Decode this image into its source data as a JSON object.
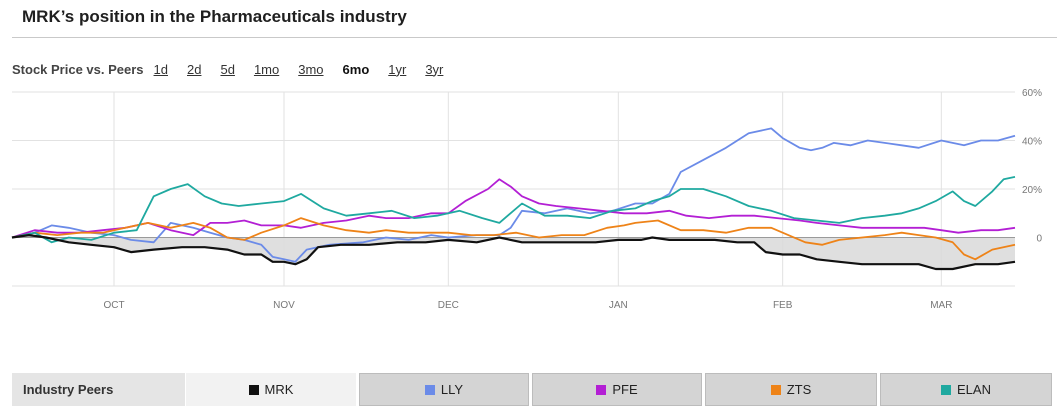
{
  "header": {
    "title": "MRK’s position in the Pharmaceuticals industry"
  },
  "range": {
    "label": "Stock Price vs. Peers",
    "options": [
      {
        "label": "1d",
        "active": false
      },
      {
        "label": "2d",
        "active": false
      },
      {
        "label": "5d",
        "active": false
      },
      {
        "label": "1mo",
        "active": false
      },
      {
        "label": "3mo",
        "active": false
      },
      {
        "label": "6mo",
        "active": true
      },
      {
        "label": "1yr",
        "active": false
      },
      {
        "label": "3yr",
        "active": false
      }
    ]
  },
  "peers": {
    "label": "Industry Peers",
    "items": [
      {
        "label": "MRK",
        "color": "#111111"
      },
      {
        "label": "LLY",
        "color": "#6b8be8"
      },
      {
        "label": "PFE",
        "color": "#b31fd4"
      },
      {
        "label": "ZTS",
        "color": "#ee8318"
      },
      {
        "label": "ELAN",
        "color": "#1fa9a0"
      }
    ]
  },
  "chart_data": {
    "type": "line",
    "title": "",
    "xlabel": "",
    "ylabel": "",
    "ylim": [
      -20,
      60
    ],
    "yticks": [
      "60%",
      "40%",
      "20%",
      "0"
    ],
    "ytick_values": [
      60,
      40,
      20,
      0
    ],
    "xticks": [
      "OCT",
      "NOV",
      "DEC",
      "JAN",
      "FEB",
      "MAR"
    ],
    "xtick_values": [
      18,
      48,
      77,
      107,
      136,
      164
    ],
    "xlim": [
      0,
      177
    ],
    "grid": true,
    "legend": "bottom",
    "series": [
      {
        "name": "MRK",
        "color": "#111111",
        "fill": true,
        "points": [
          [
            0,
            0
          ],
          [
            3,
            1
          ],
          [
            6,
            0
          ],
          [
            10,
            -2
          ],
          [
            14,
            -3
          ],
          [
            18,
            -4
          ],
          [
            21,
            -6
          ],
          [
            25,
            -5
          ],
          [
            30,
            -4
          ],
          [
            34,
            -4
          ],
          [
            38,
            -5
          ],
          [
            41,
            -7
          ],
          [
            44,
            -7
          ],
          [
            46,
            -10
          ],
          [
            48,
            -10
          ],
          [
            50,
            -11
          ],
          [
            52,
            -9
          ],
          [
            54,
            -4
          ],
          [
            58,
            -3
          ],
          [
            63,
            -3
          ],
          [
            68,
            -2
          ],
          [
            73,
            -2
          ],
          [
            77,
            -1
          ],
          [
            82,
            -2
          ],
          [
            86,
            0
          ],
          [
            90,
            -2
          ],
          [
            94,
            -2
          ],
          [
            98,
            -2
          ],
          [
            103,
            -2
          ],
          [
            107,
            -1
          ],
          [
            111,
            -1
          ],
          [
            113,
            0
          ],
          [
            116,
            -1
          ],
          [
            120,
            -1
          ],
          [
            124,
            -1
          ],
          [
            128,
            -2
          ],
          [
            131,
            -2
          ],
          [
            133,
            -6
          ],
          [
            136,
            -7
          ],
          [
            139,
            -7
          ],
          [
            142,
            -9
          ],
          [
            146,
            -10
          ],
          [
            150,
            -11
          ],
          [
            154,
            -11
          ],
          [
            157,
            -11
          ],
          [
            160,
            -11
          ],
          [
            163,
            -13
          ],
          [
            166,
            -13
          ],
          [
            170,
            -11
          ],
          [
            174,
            -11
          ],
          [
            177,
            -10
          ]
        ]
      },
      {
        "name": "LLY",
        "color": "#6b8be8",
        "fill": false,
        "points": [
          [
            0,
            0
          ],
          [
            4,
            2
          ],
          [
            7,
            5
          ],
          [
            10,
            4
          ],
          [
            14,
            2
          ],
          [
            18,
            1
          ],
          [
            21,
            -1
          ],
          [
            25,
            -2
          ],
          [
            28,
            6
          ],
          [
            32,
            4
          ],
          [
            35,
            2
          ],
          [
            38,
            0
          ],
          [
            41,
            -1
          ],
          [
            44,
            -3
          ],
          [
            46,
            -8
          ],
          [
            48,
            -9
          ],
          [
            50,
            -10
          ],
          [
            52,
            -5
          ],
          [
            56,
            -3
          ],
          [
            62,
            -2
          ],
          [
            66,
            0
          ],
          [
            70,
            -1
          ],
          [
            74,
            1
          ],
          [
            77,
            0
          ],
          [
            82,
            1
          ],
          [
            86,
            1
          ],
          [
            88,
            4
          ],
          [
            90,
            11
          ],
          [
            94,
            10
          ],
          [
            98,
            12
          ],
          [
            102,
            10
          ],
          [
            106,
            11
          ],
          [
            110,
            14
          ],
          [
            113,
            14
          ],
          [
            116,
            18
          ],
          [
            118,
            27
          ],
          [
            122,
            32
          ],
          [
            126,
            37
          ],
          [
            130,
            43
          ],
          [
            134,
            45
          ],
          [
            136,
            41
          ],
          [
            139,
            37
          ],
          [
            141,
            36
          ],
          [
            143,
            37
          ],
          [
            145,
            39
          ],
          [
            148,
            38
          ],
          [
            151,
            40
          ],
          [
            154,
            39
          ],
          [
            157,
            38
          ],
          [
            160,
            37
          ],
          [
            164,
            40
          ],
          [
            168,
            38
          ],
          [
            171,
            40
          ],
          [
            174,
            40
          ],
          [
            177,
            42
          ]
        ]
      },
      {
        "name": "PFE",
        "color": "#b31fd4",
        "fill": false,
        "points": [
          [
            0,
            0
          ],
          [
            4,
            3
          ],
          [
            8,
            2
          ],
          [
            12,
            2
          ],
          [
            16,
            3
          ],
          [
            20,
            4
          ],
          [
            24,
            6
          ],
          [
            28,
            3
          ],
          [
            32,
            1
          ],
          [
            35,
            6
          ],
          [
            38,
            6
          ],
          [
            41,
            7
          ],
          [
            44,
            5
          ],
          [
            48,
            5
          ],
          [
            51,
            4
          ],
          [
            55,
            6
          ],
          [
            59,
            7
          ],
          [
            63,
            9
          ],
          [
            66,
            8
          ],
          [
            70,
            8
          ],
          [
            74,
            10
          ],
          [
            77,
            10
          ],
          [
            80,
            15
          ],
          [
            84,
            20
          ],
          [
            86,
            24
          ],
          [
            88,
            21
          ],
          [
            90,
            17
          ],
          [
            93,
            14
          ],
          [
            96,
            13
          ],
          [
            100,
            12
          ],
          [
            104,
            11
          ],
          [
            108,
            10
          ],
          [
            112,
            10
          ],
          [
            116,
            11
          ],
          [
            119,
            9
          ],
          [
            123,
            8
          ],
          [
            127,
            9
          ],
          [
            131,
            9
          ],
          [
            135,
            8
          ],
          [
            139,
            7
          ],
          [
            142,
            6
          ],
          [
            146,
            5
          ],
          [
            150,
            4
          ],
          [
            154,
            4
          ],
          [
            158,
            4
          ],
          [
            161,
            4
          ],
          [
            164,
            3
          ],
          [
            167,
            2
          ],
          [
            171,
            3
          ],
          [
            174,
            3
          ],
          [
            177,
            4
          ]
        ]
      },
      {
        "name": "ZTS",
        "color": "#ee8318",
        "fill": false,
        "points": [
          [
            0,
            0
          ],
          [
            4,
            2
          ],
          [
            8,
            1
          ],
          [
            12,
            2
          ],
          [
            16,
            2
          ],
          [
            20,
            4
          ],
          [
            24,
            6
          ],
          [
            28,
            4
          ],
          [
            32,
            6
          ],
          [
            35,
            4
          ],
          [
            38,
            0
          ],
          [
            41,
            -1
          ],
          [
            44,
            2
          ],
          [
            48,
            5
          ],
          [
            51,
            8
          ],
          [
            55,
            5
          ],
          [
            59,
            3
          ],
          [
            63,
            2
          ],
          [
            66,
            3
          ],
          [
            70,
            2
          ],
          [
            74,
            2
          ],
          [
            77,
            2
          ],
          [
            81,
            1
          ],
          [
            85,
            1
          ],
          [
            89,
            2
          ],
          [
            93,
            0
          ],
          [
            97,
            1
          ],
          [
            101,
            1
          ],
          [
            105,
            4
          ],
          [
            108,
            5
          ],
          [
            110,
            6
          ],
          [
            114,
            7
          ],
          [
            118,
            3
          ],
          [
            122,
            3
          ],
          [
            126,
            2
          ],
          [
            130,
            4
          ],
          [
            134,
            4
          ],
          [
            136,
            2
          ],
          [
            140,
            -2
          ],
          [
            143,
            -3
          ],
          [
            146,
            -1
          ],
          [
            150,
            0
          ],
          [
            154,
            1
          ],
          [
            157,
            2
          ],
          [
            160,
            1
          ],
          [
            163,
            0
          ],
          [
            166,
            -2
          ],
          [
            168,
            -7
          ],
          [
            170,
            -9
          ],
          [
            173,
            -5
          ],
          [
            177,
            -3
          ]
        ]
      },
      {
        "name": "ELAN",
        "color": "#1fa9a0",
        "fill": false,
        "points": [
          [
            0,
            0
          ],
          [
            4,
            2
          ],
          [
            7,
            -2
          ],
          [
            10,
            0
          ],
          [
            14,
            -1
          ],
          [
            18,
            2
          ],
          [
            22,
            3
          ],
          [
            25,
            17
          ],
          [
            28,
            20
          ],
          [
            31,
            22
          ],
          [
            34,
            17
          ],
          [
            37,
            14
          ],
          [
            40,
            13
          ],
          [
            44,
            14
          ],
          [
            48,
            15
          ],
          [
            51,
            18
          ],
          [
            55,
            12
          ],
          [
            59,
            9
          ],
          [
            63,
            10
          ],
          [
            67,
            11
          ],
          [
            71,
            8
          ],
          [
            75,
            9
          ],
          [
            79,
            11
          ],
          [
            83,
            8
          ],
          [
            86,
            6
          ],
          [
            90,
            14
          ],
          [
            94,
            9
          ],
          [
            98,
            9
          ],
          [
            102,
            8
          ],
          [
            106,
            11
          ],
          [
            110,
            12
          ],
          [
            113,
            15
          ],
          [
            116,
            17
          ],
          [
            118,
            20
          ],
          [
            122,
            20
          ],
          [
            126,
            17
          ],
          [
            130,
            13
          ],
          [
            134,
            11
          ],
          [
            138,
            8
          ],
          [
            142,
            7
          ],
          [
            146,
            6
          ],
          [
            150,
            8
          ],
          [
            154,
            9
          ],
          [
            157,
            10
          ],
          [
            160,
            12
          ],
          [
            163,
            15
          ],
          [
            166,
            19
          ],
          [
            168,
            15
          ],
          [
            170,
            13
          ],
          [
            173,
            19
          ],
          [
            175,
            24
          ],
          [
            177,
            25
          ]
        ]
      }
    ]
  }
}
